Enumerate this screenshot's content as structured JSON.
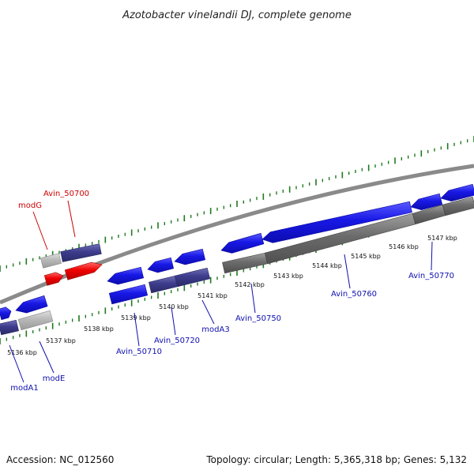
{
  "title": "Azotobacter vinelandii DJ, complete genome",
  "footer": {
    "accession": "Accession: NC_012560",
    "summary": "Topology: circular; Length: 5,365,318 bp; Genes: 5,132"
  },
  "colors": {
    "background": "#ffffff",
    "backbone": "#8a8a8a",
    "tick_mark": "#1f7a1f",
    "gene_blue": "#1414e0",
    "gene_navy": "#3c3c8c",
    "gene_red": "#ee0000",
    "gene_gray": "#6b6b6b",
    "gene_light_gray": "#b4b4b4",
    "label_blue": "#1010b0",
    "label_red": "#cc0000"
  },
  "scale_labels": [
    "5136 kbp",
    "5137 kbp",
    "5138 kbp",
    "5139 kbp",
    "5140 kbp",
    "5141 kbp",
    "5142 kbp",
    "5143 kbp",
    "5144 kbp",
    "5145 kbp",
    "5146 kbp",
    "5147 kbp"
  ],
  "gene_labels": [
    {
      "text": "Avin_50700",
      "color": "red"
    },
    {
      "text": "modG",
      "color": "red"
    },
    {
      "text": "modA1",
      "color": "blue"
    },
    {
      "text": "modE",
      "color": "blue"
    },
    {
      "text": "Avin_50710",
      "color": "blue"
    },
    {
      "text": "Avin_50720",
      "color": "blue"
    },
    {
      "text": "modA3",
      "color": "blue"
    },
    {
      "text": "Avin_50750",
      "color": "blue"
    },
    {
      "text": "Avin_50760",
      "color": "blue"
    },
    {
      "text": "Avin_50770",
      "color": "blue"
    }
  ]
}
